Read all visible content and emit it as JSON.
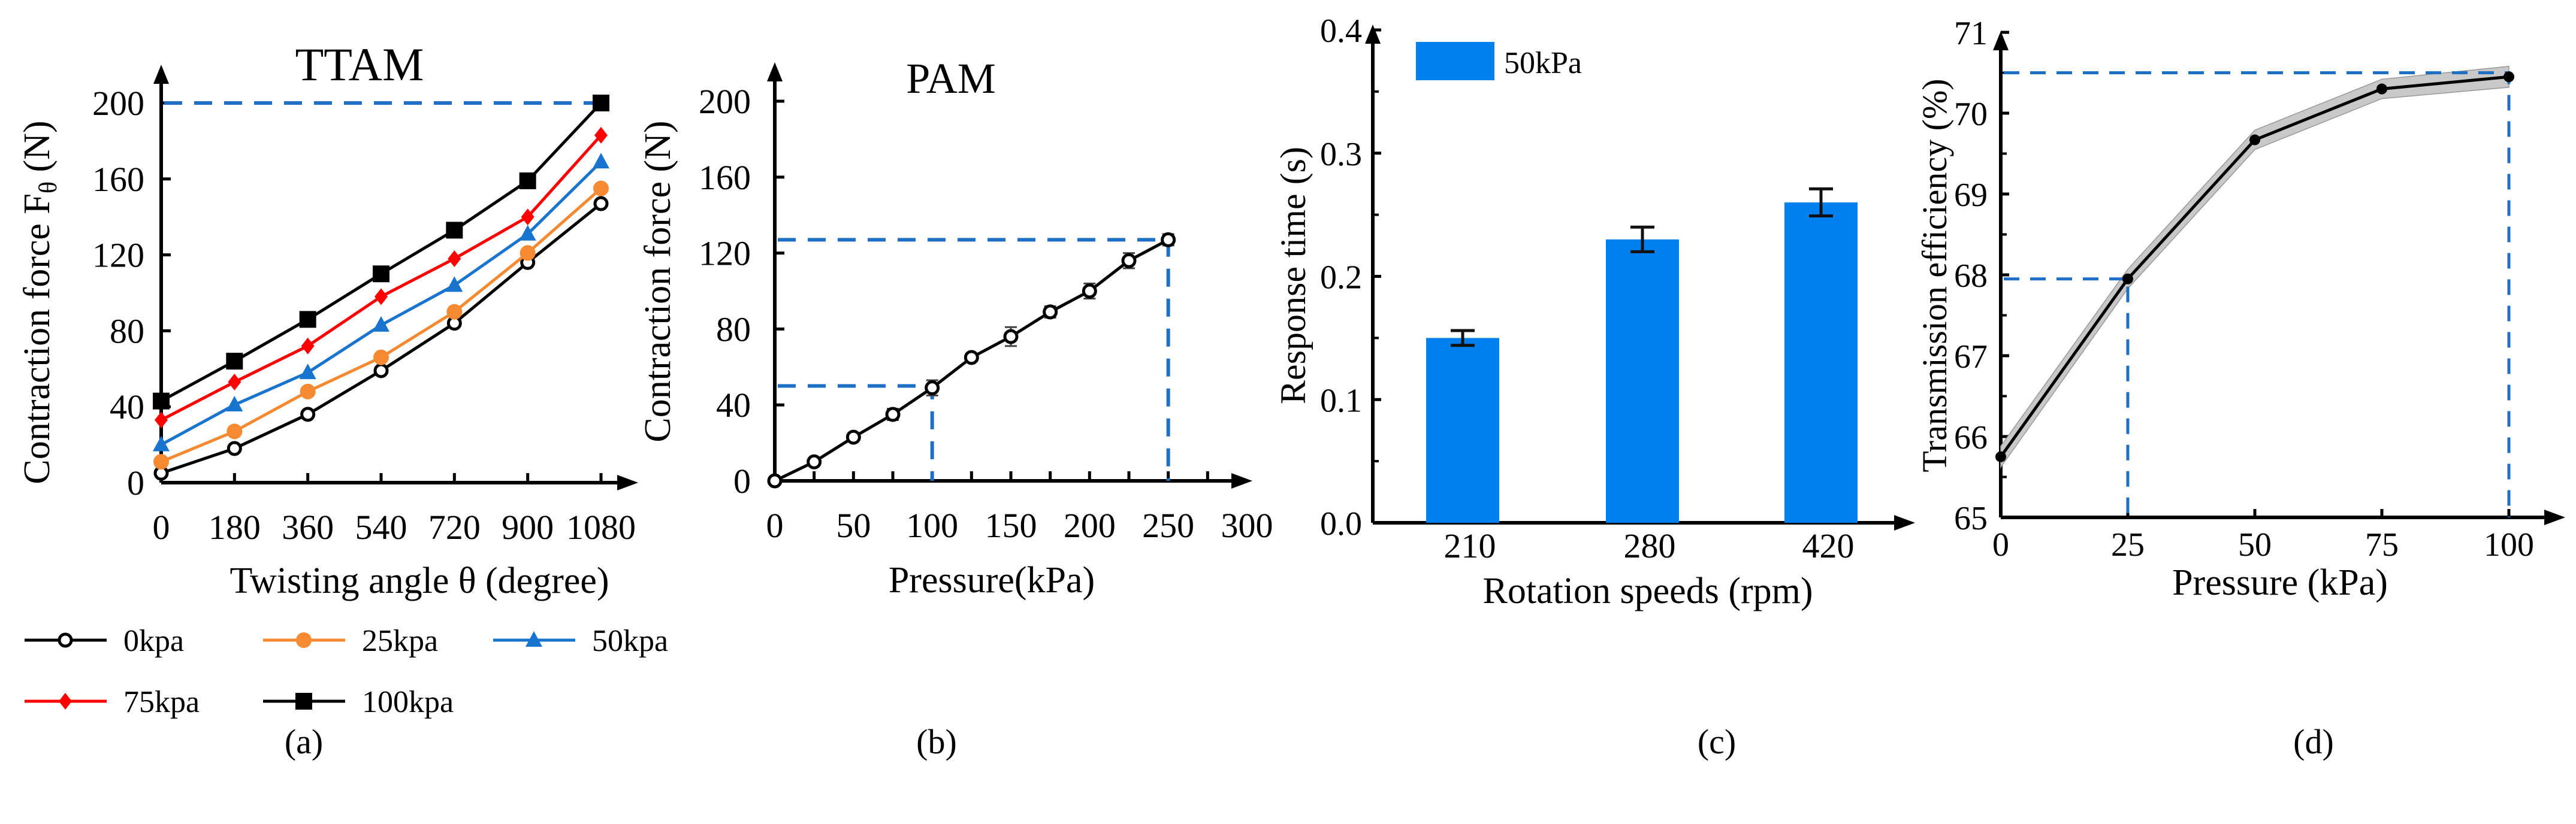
{
  "colors": {
    "axis": "#000000",
    "reference": "#1f6fc5",
    "bar": "#0080ee",
    "band": "#c8c8c8"
  },
  "chart_data": [
    {
      "panel_label": "(a)",
      "type": "line",
      "title": "TTAM",
      "xlabel": "Twisting angle θ (degree)",
      "ylabel_main": "Contraction force F",
      "ylabel_sub": "θ",
      "ylabel_unit": " (N)",
      "x": [
        0,
        180,
        360,
        540,
        720,
        900,
        1080
      ],
      "xticks": [
        "0",
        "180",
        "360",
        "540",
        "720",
        "900",
        "1080"
      ],
      "yticks": [
        "0",
        "40",
        "80",
        "120",
        "160",
        "200"
      ],
      "ylim": [
        0,
        200
      ],
      "reference_y": 200,
      "legend_position": "bottom",
      "series": [
        {
          "name": "0kpa",
          "color": "#000000",
          "marker": "open-circle",
          "values": [
            5,
            18,
            36,
            59,
            84,
            116,
            147
          ]
        },
        {
          "name": "25kpa",
          "color": "#f58a32",
          "marker": "circle",
          "values": [
            11,
            27,
            48,
            66,
            90,
            121,
            155
          ]
        },
        {
          "name": "50kpa",
          "color": "#1874cd",
          "marker": "triangle",
          "values": [
            20,
            41,
            58,
            83,
            104,
            131,
            169
          ]
        },
        {
          "name": "75kpa",
          "color": "#ff0000",
          "marker": "diamond",
          "values": [
            33,
            53,
            72,
            98,
            118,
            140,
            183
          ]
        },
        {
          "name": "100kpa",
          "color": "#000000",
          "marker": "square",
          "values": [
            43,
            64,
            86,
            110,
            133,
            159,
            200
          ]
        }
      ]
    },
    {
      "panel_label": "(b)",
      "type": "line",
      "title": "PAM",
      "xlabel": "Pressure(kPa)",
      "ylabel": "Contraction force (N)",
      "x": [
        0,
        25,
        50,
        75,
        100,
        125,
        150,
        175,
        200,
        225,
        250
      ],
      "values": [
        0,
        10,
        23,
        35,
        49,
        65,
        76,
        89,
        100,
        116,
        127
      ],
      "errors": [
        0,
        1.5,
        2,
        3,
        4,
        2,
        5,
        3,
        4,
        4,
        3
      ],
      "xticks": [
        "0",
        "50",
        "100",
        "150",
        "200",
        "250",
        "300"
      ],
      "yticks": [
        "0",
        "40",
        "80",
        "120",
        "160",
        "200"
      ],
      "xlim": [
        0,
        300
      ],
      "ylim": [
        0,
        200
      ],
      "reference_points": [
        [
          100,
          50
        ],
        [
          250,
          127
        ]
      ]
    },
    {
      "panel_label": "(c)",
      "type": "bar",
      "xlabel": "Rotation speeds (rpm)",
      "ylabel": "Response time (s)",
      "categories": [
        "210",
        "280",
        "420"
      ],
      "values": [
        0.15,
        0.23,
        0.26
      ],
      "errors": [
        0.006,
        0.01,
        0.011
      ],
      "yticks": [
        "0.0",
        "0.1",
        "0.2",
        "0.3",
        "0.4"
      ],
      "ylim": [
        0,
        0.4
      ],
      "legend": "50kPa",
      "legend_position": "top-left"
    },
    {
      "panel_label": "(d)",
      "type": "line",
      "xlabel": "Pressure (kPa)",
      "ylabel": "Transmission efficiency (%)",
      "x": [
        0,
        25,
        50,
        75,
        100
      ],
      "values": [
        65.75,
        67.95,
        69.67,
        70.3,
        70.45
      ],
      "band": [
        0.13,
        0.12,
        0.12,
        0.12,
        0.13
      ],
      "xticks": [
        "0",
        "25",
        "50",
        "75",
        "100"
      ],
      "yticks": [
        "65",
        "66",
        "67",
        "68",
        "69",
        "70",
        "71"
      ],
      "xlim": [
        0,
        100
      ],
      "ylim": [
        65,
        71
      ],
      "reference_points": [
        [
          25,
          67.95
        ],
        [
          100,
          70.5
        ]
      ]
    }
  ]
}
